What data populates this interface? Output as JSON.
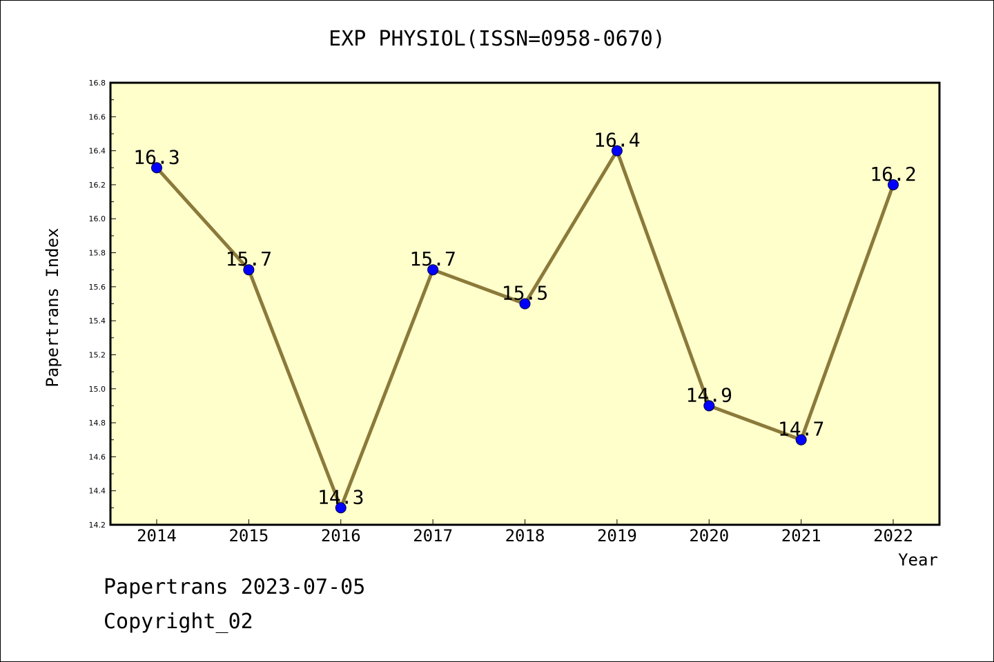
{
  "colors": {
    "plot_background": "#ffffcc",
    "line": "#8b7a3a",
    "marker": "#0000ff"
  },
  "chart_data": {
    "type": "line",
    "title": "EXP PHYSIOL(ISSN=0958-0670)",
    "xlabel": "Year",
    "ylabel": "Papertrans Index",
    "categories": [
      "2014",
      "2015",
      "2016",
      "2017",
      "2018",
      "2019",
      "2020",
      "2021",
      "2022"
    ],
    "series": [
      {
        "values": [
          16.3,
          15.7,
          14.3,
          15.7,
          15.5,
          16.4,
          14.9,
          14.7,
          16.2
        ]
      }
    ],
    "data_labels": [
      "16.3",
      "15.7",
      "14.3",
      "15.7",
      "15.5",
      "16.4",
      "14.9",
      "14.7",
      "16.2"
    ],
    "ylim": [
      14.2,
      16.8
    ],
    "yticks": [
      "14.2",
      "14.4",
      "14.6",
      "14.8",
      "15.0",
      "15.2",
      "15.4",
      "15.6",
      "15.8",
      "16.0",
      "16.2",
      "16.4",
      "16.6",
      "16.8"
    ],
    "grid": false,
    "legend": "none"
  },
  "footer": {
    "line1": "Papertrans 2023-07-05",
    "line2": "Copyright_02"
  }
}
